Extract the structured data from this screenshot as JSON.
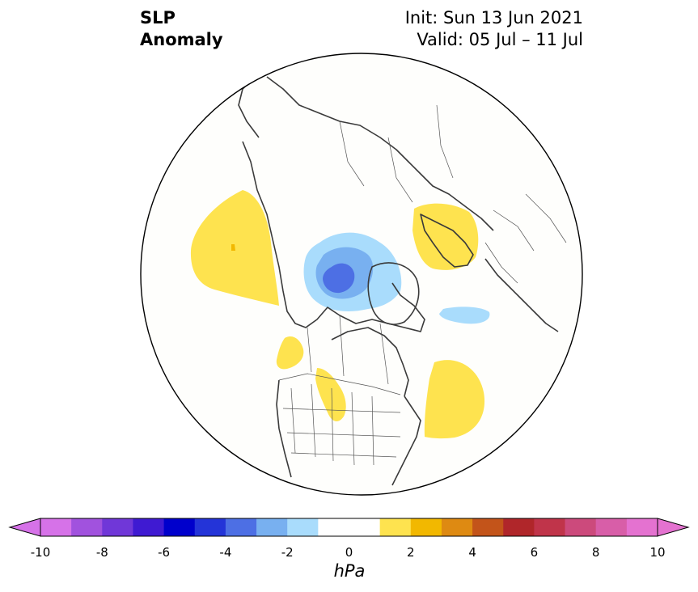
{
  "title": {
    "variable_line1": "SLP",
    "variable_line2": "Anomaly",
    "init": "Init: Sun 13 Jun 2021",
    "valid": "Valid: 05 Jul – 11 Jul"
  },
  "colorbar": {
    "unit": "hPa",
    "ticks": [
      "-10",
      "-8",
      "-6",
      "-4",
      "-2",
      "0",
      "2",
      "4",
      "6",
      "8",
      "10"
    ],
    "colors": [
      "#d672e8",
      "#a152de",
      "#7037d8",
      "#3f1ad2",
      "#0000cc",
      "#2434d8",
      "#4d6fe4",
      "#78b0f0",
      "#a9dcfc",
      "#ffffff",
      "#ffffff",
      "#fee34f",
      "#f2b800",
      "#de8a12",
      "#c3541a",
      "#b0262a",
      "#c0344a",
      "#cc4a7c",
      "#d85ea8",
      "#e472d0"
    ],
    "min_extend_color": "#d672e8",
    "max_extend_color": "#e472d0"
  },
  "map": {
    "projection": "north polar stereographic",
    "ocean_color": "#fefefc",
    "coast_color": "#3a3a3a",
    "anomalies": [
      {
        "region": "North Pacific / Gulf of Alaska",
        "sign": "positive",
        "level": "1-2"
      },
      {
        "region": "Northern Europe / Scandinavia",
        "sign": "positive",
        "level": "1-2"
      },
      {
        "region": "Western North Atlantic",
        "sign": "positive",
        "level": "1-2"
      },
      {
        "region": "Western Canada",
        "sign": "positive",
        "level": "1-2"
      },
      {
        "region": "Northern Great Plains",
        "sign": "positive",
        "level": "1-2"
      },
      {
        "region": "Arctic Ocean (Beaufort / East Siberian)",
        "sign": "negative",
        "level": "-1 to -4"
      },
      {
        "region": "Near Svalbard / Barents",
        "sign": "negative",
        "level": "-1 to -2"
      }
    ]
  }
}
